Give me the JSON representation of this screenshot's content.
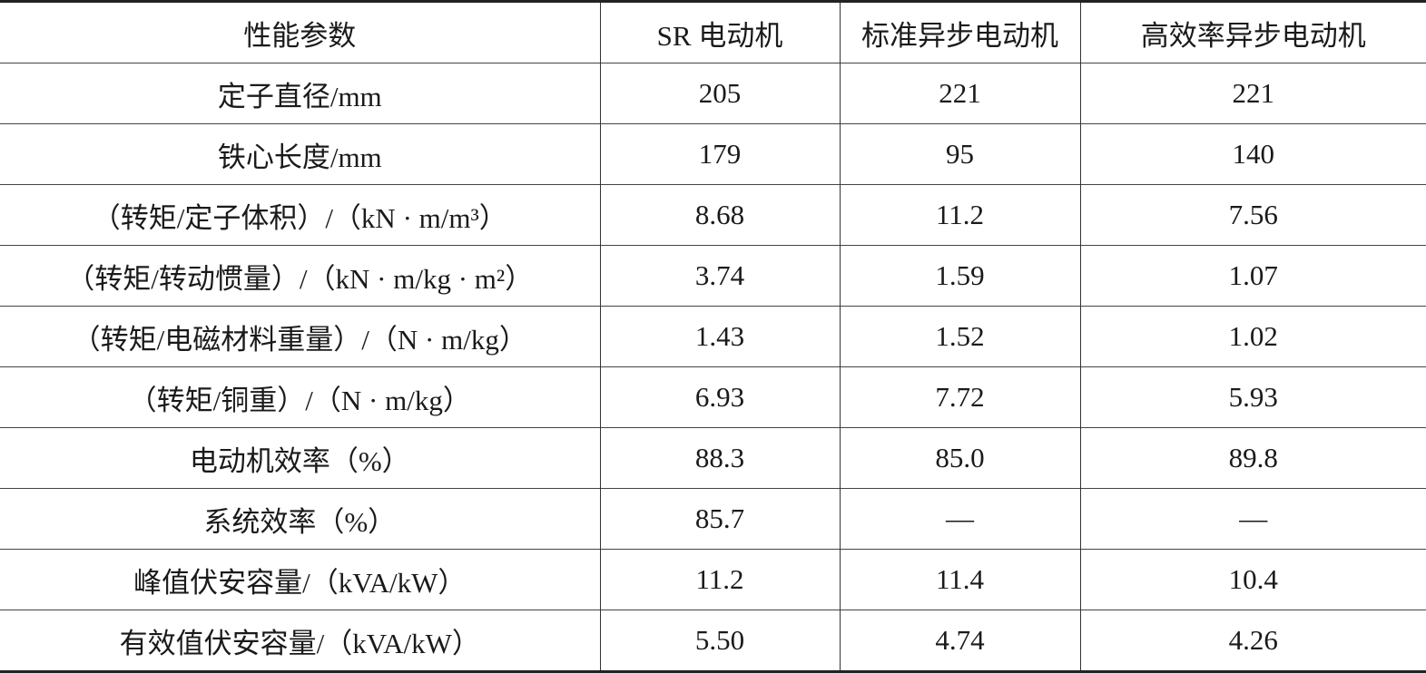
{
  "table": {
    "header": [
      "性能参数",
      "SR 电动机",
      "标准异步电动机",
      "高效率异步电动机"
    ],
    "rows": [
      [
        "定子直径/mm",
        "205",
        "221",
        "221"
      ],
      [
        "铁心长度/mm",
        "179",
        "95",
        "140"
      ],
      [
        "（转矩/定子体积）/（kN · m/m³）",
        "8.68",
        "11.2",
        "7.56"
      ],
      [
        "（转矩/转动惯量）/（kN · m/kg · m²）",
        "3.74",
        "1.59",
        "1.07"
      ],
      [
        "（转矩/电磁材料重量）/（N · m/kg）",
        "1.43",
        "1.52",
        "1.02"
      ],
      [
        "（转矩/铜重）/（N · m/kg）",
        "6.93",
        "7.72",
        "5.93"
      ],
      [
        "电动机效率（%）",
        "88.3",
        "85.0",
        "89.8"
      ],
      [
        "系统效率（%）",
        "85.7",
        "—",
        "—"
      ],
      [
        "峰值伏安容量/（kVA/kW）",
        "11.2",
        "11.4",
        "10.4"
      ],
      [
        "有效值伏安容量/（kVA/kW）",
        "5.50",
        "4.74",
        "4.26"
      ]
    ]
  }
}
